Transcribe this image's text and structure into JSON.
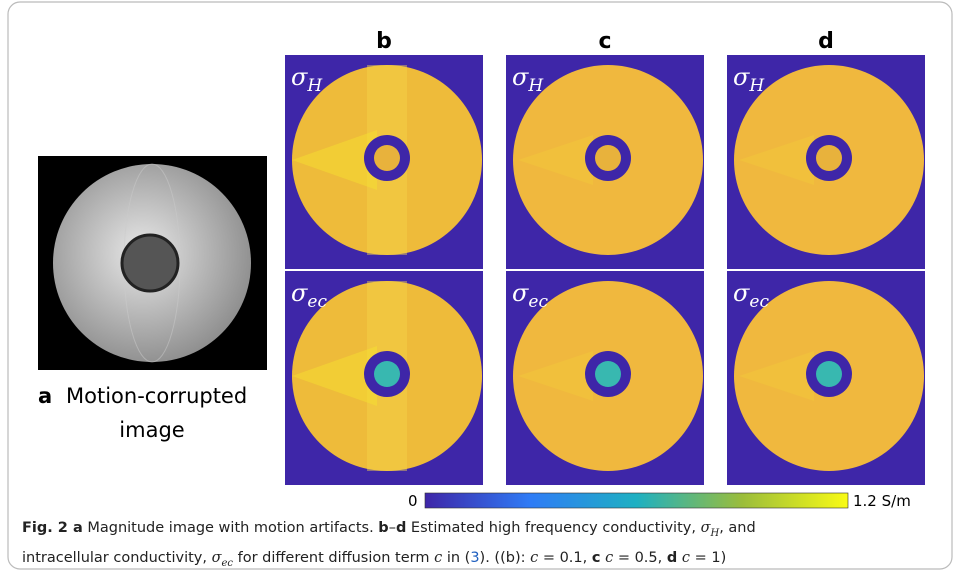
{
  "panel_a": {
    "letter": "a",
    "label_lines": [
      "Motion-corrupted",
      "image"
    ]
  },
  "columns": [
    "b",
    "c",
    "d"
  ],
  "row_labels": [
    {
      "symbol": "σ",
      "subscript": "H"
    },
    {
      "symbol": "σ",
      "subscript": "ec"
    }
  ],
  "colorbar": {
    "min_label": "0",
    "max_label": "1.2 S/m"
  },
  "caption": {
    "lines": [
      [
        {
          "text": "Fig. 2",
          "style": "bold"
        },
        {
          "text": " a",
          "style": "bold"
        },
        {
          "text": " Magnitude image with motion artifacts. ",
          "style": "normal"
        },
        {
          "text": "b",
          "style": "bold"
        },
        {
          "text": "–",
          "style": "normal"
        },
        {
          "text": "d",
          "style": "bold"
        },
        {
          "text": " Estimated high frequency conductivity, ",
          "style": "normal"
        },
        {
          "text": "σ",
          "style": "italic"
        },
        {
          "text": "H",
          "style": "sub"
        },
        {
          "text": ", and",
          "style": "normal"
        }
      ],
      [
        {
          "text": "intracellular conductivity, ",
          "style": "normal"
        },
        {
          "text": "σ",
          "style": "italic"
        },
        {
          "text": "ec",
          "style": "sub"
        },
        {
          "text": " for different diffusion term ",
          "style": "normal"
        },
        {
          "text": "c",
          "style": "italic"
        },
        {
          "text": " in (",
          "style": "normal"
        },
        {
          "text": "3",
          "style": "link"
        },
        {
          "text": "). ((b): ",
          "style": "normal"
        },
        {
          "text": "c",
          "style": "italic"
        },
        {
          "text": " = 0.1, ",
          "style": "normal"
        },
        {
          "text": "c",
          "style": "bold"
        },
        {
          "text": " c",
          "style": "italic"
        },
        {
          "text": " = 0.5, ",
          "style": "normal"
        },
        {
          "text": "d",
          "style": "bold"
        },
        {
          "text": " c",
          "style": "italic"
        },
        {
          "text": " = 1)",
          "style": "normal"
        }
      ]
    ]
  }
}
